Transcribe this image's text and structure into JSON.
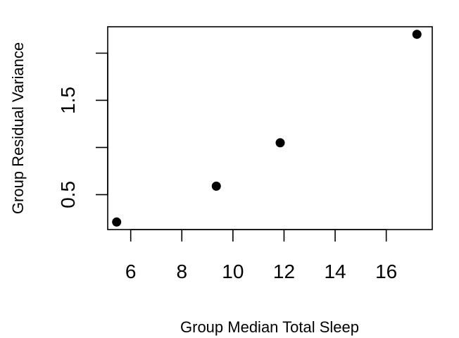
{
  "chart_data": {
    "type": "scatter",
    "title": "",
    "xlabel": "Group Median Total Sleep",
    "ylabel": "Group Residual Variance",
    "xlim": [
      5.1,
      17.8
    ],
    "ylim": [
      0.13,
      2.28
    ],
    "x_ticks": [
      6,
      8,
      10,
      12,
      14,
      16
    ],
    "x_tick_labels": [
      "6",
      "8",
      "10",
      "12",
      "14",
      "16"
    ],
    "y_ticks": [
      0.5,
      1.0,
      1.5,
      2.0
    ],
    "y_tick_labels": [
      "0.5",
      "",
      "1.5",
      ""
    ],
    "grid": false,
    "legend": "none",
    "colors": {
      "points": "#000000",
      "axes": "#000000",
      "background": "#ffffff"
    },
    "points": [
      {
        "x": 5.45,
        "y": 0.21
      },
      {
        "x": 9.35,
        "y": 0.59
      },
      {
        "x": 11.85,
        "y": 1.05
      },
      {
        "x": 17.2,
        "y": 2.2
      }
    ]
  }
}
